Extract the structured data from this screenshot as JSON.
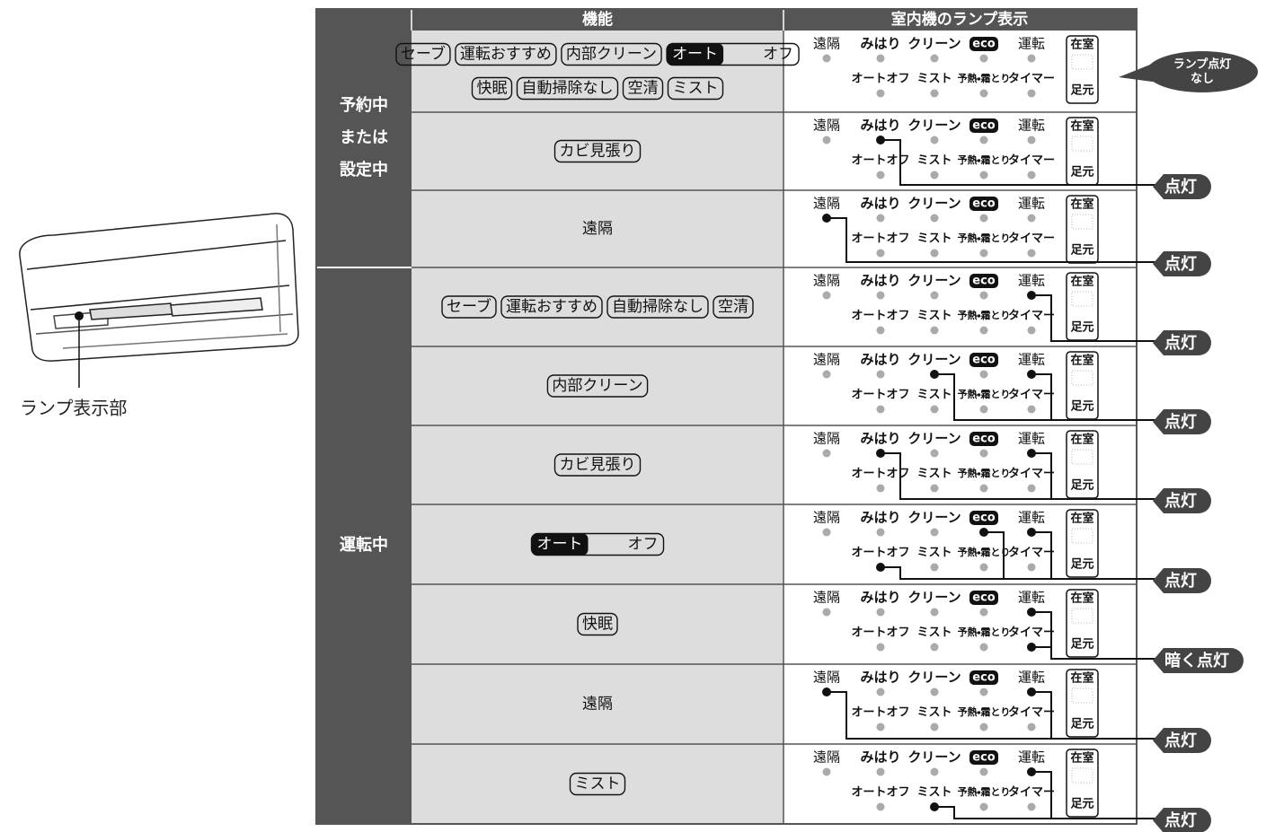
{
  "header": {
    "function": "機能",
    "lamp": "室内機のランプ表示"
  },
  "unit_label": "ランプ表示部",
  "lamp_labels": {
    "top": [
      "遠隔",
      "みはり",
      "クリーン",
      "eco",
      "運転"
    ],
    "bottom": [
      "オートオフ",
      "ミスト",
      "予熱・霜とり",
      "タイマー"
    ],
    "box": [
      "在室",
      "足元"
    ]
  },
  "groups": [
    {
      "label": [
        "予約中",
        "または",
        "設定中"
      ],
      "rows": [
        {
          "functions": [
            [
              "セーブ",
              "運転おすすめ",
              "内部クリーン",
              {
                "toggle": [
                  "オート",
                  "オフ"
                ]
              }
            ],
            [
              "快眠",
              "自動掃除なし",
              "空清",
              "ミスト"
            ]
          ],
          "status": [
            "ランプ点灯",
            "なし"
          ]
        },
        {
          "functions": [
            [
              "カビ見張り"
            ]
          ],
          "status": [
            "点灯"
          ]
        },
        {
          "text": "遠隔",
          "status": [
            "点灯"
          ]
        }
      ]
    },
    {
      "label": [
        "運転中"
      ],
      "rows": [
        {
          "functions": [
            [
              "セーブ",
              "運転おすすめ",
              "自動掃除なし",
              "空清"
            ]
          ],
          "status": [
            "点灯"
          ]
        },
        {
          "functions": [
            [
              "内部クリーン"
            ]
          ],
          "status": [
            "点灯"
          ]
        },
        {
          "functions": [
            [
              "カビ見張り"
            ]
          ],
          "status": [
            "点灯"
          ]
        },
        {
          "functions": [
            [
              {
                "toggle": [
                  "オート",
                  "オフ"
                ]
              }
            ]
          ],
          "status": [
            "点灯"
          ]
        },
        {
          "functions": [
            [
              "快眠"
            ]
          ],
          "status": [
            "暗く点灯"
          ]
        },
        {
          "text": "遠隔",
          "status": [
            "点灯"
          ]
        },
        {
          "functions": [
            [
              "ミスト"
            ]
          ],
          "status": [
            "点灯"
          ]
        }
      ]
    }
  ]
}
